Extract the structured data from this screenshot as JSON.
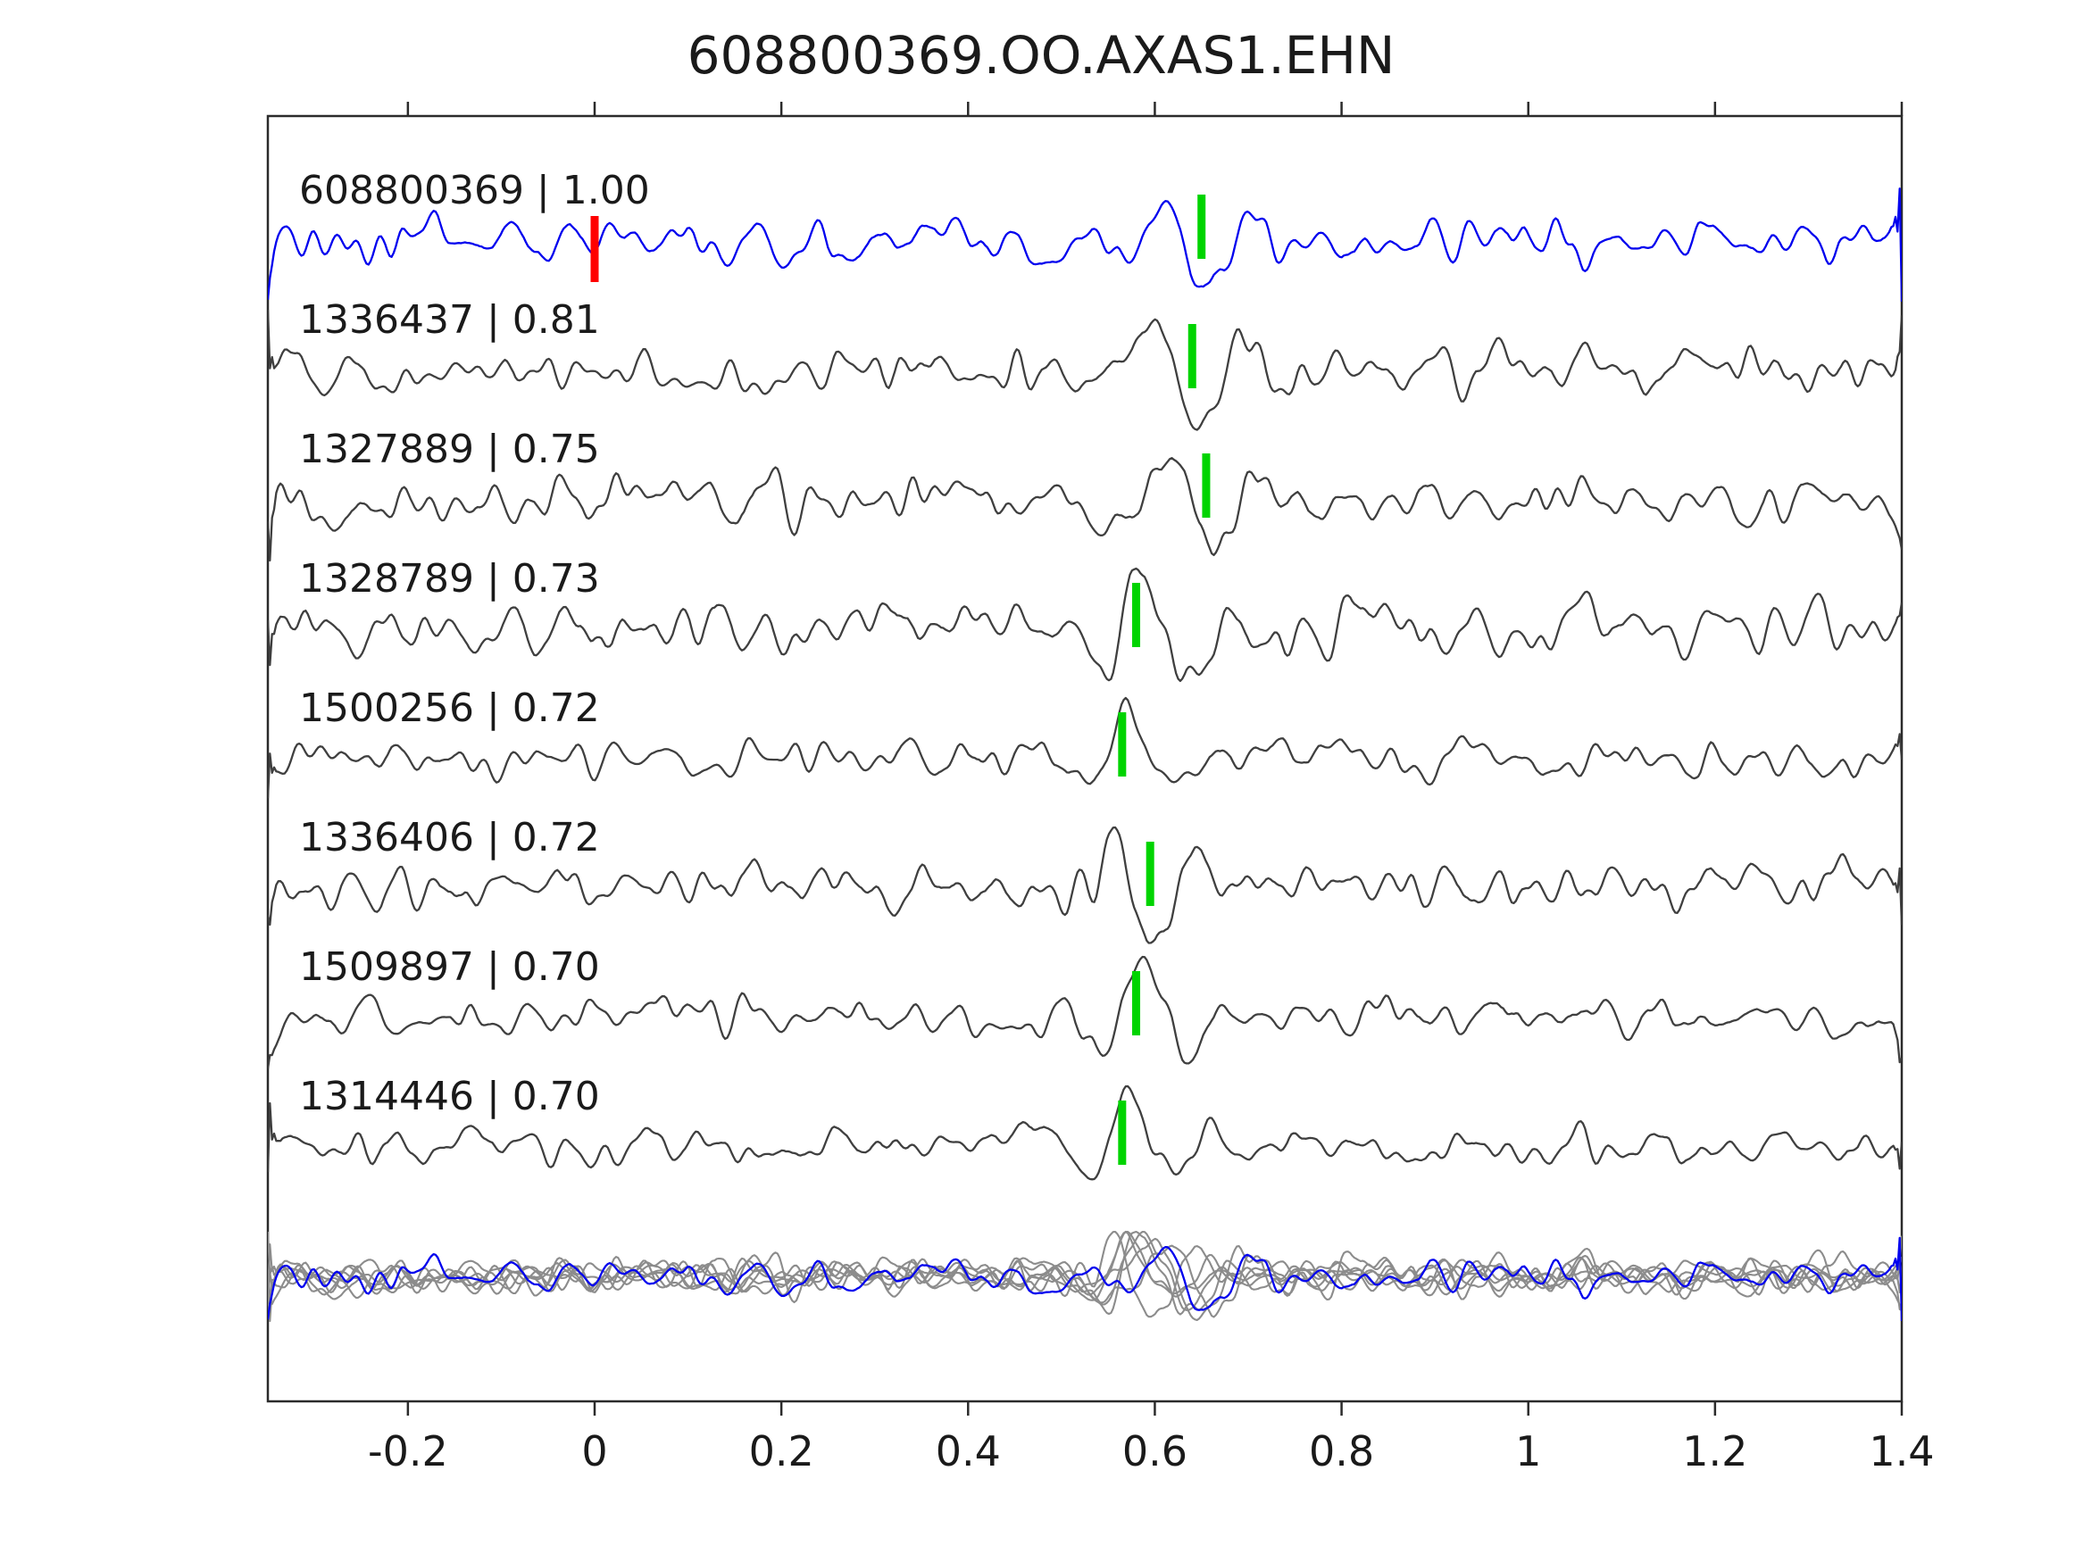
{
  "title": "608800369.OO.AXAS1.EHN",
  "chart_data": {
    "type": "line",
    "title": "608800369.OO.AXAS1.EHN",
    "xlabel": "",
    "ylabel": "",
    "xlim": [
      -0.35,
      1.4
    ],
    "x_ticks": [
      -0.2,
      0,
      0.2,
      0.4,
      0.6,
      0.8,
      1,
      1.2,
      1.4
    ],
    "x_tick_labels": [
      "-0.2",
      "0",
      "0.2",
      "0.4",
      "0.6",
      "0.8",
      "1",
      "1.2",
      "1.4"
    ],
    "grid": false,
    "legend": "none",
    "rows": 9,
    "description_rows": "8 labeled waveform rows plus 1 bottom row with all traces overlaid",
    "traces": [
      {
        "label": "608800369 | 1.00",
        "id": "608800369",
        "correlation": 1.0,
        "color": "#0000ee",
        "pick_x": 0.65,
        "ref_pick_x": 0.0
      },
      {
        "label": "1336437 | 0.81",
        "id": "1336437",
        "correlation": 0.81,
        "color": "#3f3f3f",
        "pick_x": 0.64
      },
      {
        "label": "1327889 | 0.75",
        "id": "1327889",
        "correlation": 0.75,
        "color": "#3f3f3f",
        "pick_x": 0.655
      },
      {
        "label": "1328789 | 0.73",
        "id": "1328789",
        "correlation": 0.73,
        "color": "#3f3f3f",
        "pick_x": 0.58
      },
      {
        "label": "1500256 | 0.72",
        "id": "1500256",
        "correlation": 0.72,
        "color": "#3f3f3f",
        "pick_x": 0.565
      },
      {
        "label": "1336406 | 0.72",
        "id": "1336406",
        "correlation": 0.72,
        "color": "#3f3f3f",
        "pick_x": 0.595
      },
      {
        "label": "1509897 | 0.70",
        "id": "1509897",
        "correlation": 0.7,
        "color": "#3f3f3f",
        "pick_x": 0.58
      },
      {
        "label": "1314446 | 0.70",
        "id": "1314446",
        "correlation": 0.7,
        "color": "#3f3f3f",
        "pick_x": 0.565
      }
    ],
    "overlay_row": {
      "member_color": "#8c8c8c",
      "reference_color": "#0000ee"
    },
    "marker_colors": {
      "pick_marker": "#00d400",
      "reference_pick_marker": "#ff0000"
    },
    "axis_color": "#2b2b2b",
    "text_color": "#1a1a1a"
  }
}
